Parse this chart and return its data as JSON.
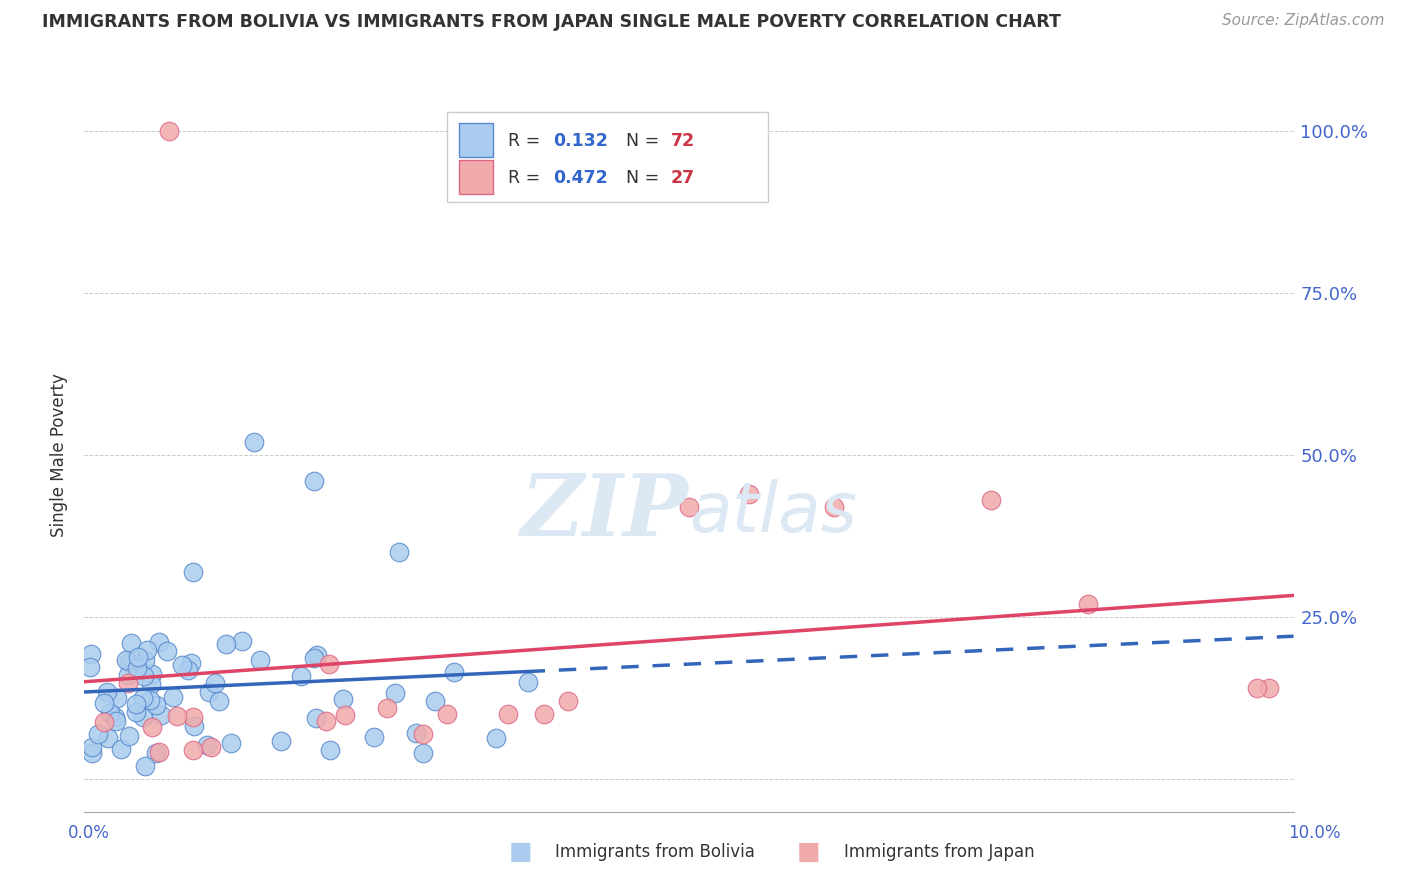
{
  "title": "IMMIGRANTS FROM BOLIVIA VS IMMIGRANTS FROM JAPAN SINGLE MALE POVERTY CORRELATION CHART",
  "source": "Source: ZipAtlas.com",
  "ylabel": "Single Male Poverty",
  "bolivia_R": 0.132,
  "bolivia_N": 72,
  "japan_R": 0.472,
  "japan_N": 27,
  "bolivia_color": "#aaccee",
  "japan_color": "#f0aaaa",
  "bolivia_edge_color": "#5588cc",
  "japan_edge_color": "#dd6688",
  "bolivia_line_color": "#3366bb",
  "japan_line_color": "#dd4466",
  "xlim": [
    0.0,
    0.1
  ],
  "ylim": [
    -0.05,
    1.05
  ],
  "ytick_vals": [
    0.0,
    0.25,
    0.5,
    0.75,
    1.0
  ],
  "ytick_labels": [
    "",
    "25.0%",
    "50.0%",
    "75.0%",
    "100.0%"
  ],
  "background_color": "#ffffff",
  "watermark": "ZIPatlas",
  "watermark_color": "#dde8f5"
}
